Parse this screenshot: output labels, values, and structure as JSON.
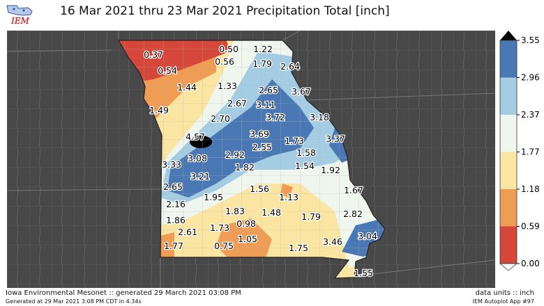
{
  "header": {
    "title": "16 Mar 2021 thru 23 Mar 2021 Precipitation Total [inch]",
    "logo_text": "IEM"
  },
  "map": {
    "region": "Missouri",
    "values": [
      {
        "id": "v1",
        "label": "0.37"
      },
      {
        "id": "v2",
        "label": "0.50"
      },
      {
        "id": "v3",
        "label": "1.22"
      },
      {
        "id": "v4",
        "label": "0.54"
      },
      {
        "id": "v5",
        "label": "0.56"
      },
      {
        "id": "v6",
        "label": "1.79"
      },
      {
        "id": "v7",
        "label": "2.64"
      },
      {
        "id": "v8",
        "label": "1.44"
      },
      {
        "id": "v9",
        "label": "1.33"
      },
      {
        "id": "v10",
        "label": "2.65"
      },
      {
        "id": "v11",
        "label": "3.67"
      },
      {
        "id": "v12",
        "label": "2.67"
      },
      {
        "id": "v13",
        "label": "3.11"
      },
      {
        "id": "v14",
        "label": "1.49"
      },
      {
        "id": "v15",
        "label": "2.70"
      },
      {
        "id": "v16",
        "label": "3.72"
      },
      {
        "id": "v17",
        "label": "3.18"
      },
      {
        "id": "v18",
        "label": "4.57"
      },
      {
        "id": "v19",
        "label": "3.69"
      },
      {
        "id": "v20",
        "label": "2.55"
      },
      {
        "id": "v21",
        "label": "3.37"
      },
      {
        "id": "v22",
        "label": "1.73"
      },
      {
        "id": "v23",
        "label": "3.08"
      },
      {
        "id": "v24",
        "label": "2.92"
      },
      {
        "id": "v25",
        "label": "1.58"
      },
      {
        "id": "v26",
        "label": "3.33"
      },
      {
        "id": "v27",
        "label": "1.82"
      },
      {
        "id": "v28",
        "label": "1.54"
      },
      {
        "id": "v29",
        "label": "1.92"
      },
      {
        "id": "v30",
        "label": "3.21"
      },
      {
        "id": "v31",
        "label": "2.65"
      },
      {
        "id": "v32",
        "label": "1.56"
      },
      {
        "id": "v33",
        "label": "1.67"
      },
      {
        "id": "v34",
        "label": "1.13"
      },
      {
        "id": "v35",
        "label": "1.95"
      },
      {
        "id": "v36",
        "label": "2.16"
      },
      {
        "id": "v37",
        "label": "1.83"
      },
      {
        "id": "v38",
        "label": "1.48"
      },
      {
        "id": "v39",
        "label": "2.82"
      },
      {
        "id": "v40",
        "label": "1.86"
      },
      {
        "id": "v41",
        "label": "1.79"
      },
      {
        "id": "v42",
        "label": "0.98"
      },
      {
        "id": "v43",
        "label": "1.73"
      },
      {
        "id": "v44",
        "label": "2.61"
      },
      {
        "id": "v45",
        "label": "3.04"
      },
      {
        "id": "v46",
        "label": "1.05"
      },
      {
        "id": "v47",
        "label": "3.46"
      },
      {
        "id": "v48",
        "label": "1.77"
      },
      {
        "id": "v49",
        "label": "0.75"
      },
      {
        "id": "v50",
        "label": "1.75"
      },
      {
        "id": "v51",
        "label": "1.55"
      }
    ]
  },
  "legend": {
    "ticks": [
      "3.55",
      "2.96",
      "2.37",
      "1.77",
      "1.18",
      "0.59",
      "0.00"
    ],
    "colors": [
      "#4a78b5",
      "#a4cce3",
      "#eef6ee",
      "#fae5a2",
      "#ef9c55",
      "#d6473b"
    ],
    "over_color": "#000000",
    "under_color": "#ffffff"
  },
  "footer": {
    "left": "Iowa Environmental Mesonet :: generated 29 March 2021 03:08 PM",
    "left_small": "Generated at 29 Mar 2021 3:08 PM CDT in 4.34s",
    "right": "data units :: inch",
    "right_small": "IEM Autoplot App #97"
  }
}
